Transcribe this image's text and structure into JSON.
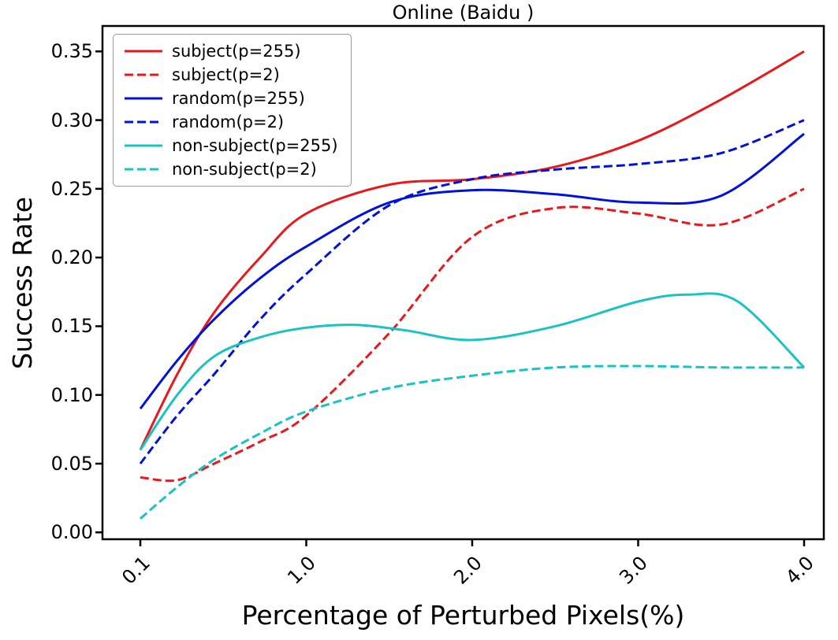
{
  "chart_data": {
    "type": "line",
    "title": "Online (Baidu )",
    "xlabel": "Percentage of Perturbed Pixels(%)",
    "ylabel": "Success Rate",
    "xtick_labels": [
      "0.1",
      "1.0",
      "2.0",
      "3.0",
      "4.0"
    ],
    "xticks": [
      0.1,
      1.0,
      2.0,
      3.0,
      4.0
    ],
    "ytick_labels": [
      "0.00",
      "0.05",
      "0.10",
      "0.15",
      "0.20",
      "0.25",
      "0.30",
      "0.35"
    ],
    "yticks": [
      0.0,
      0.05,
      0.1,
      0.15,
      0.2,
      0.25,
      0.3,
      0.35
    ],
    "ylim": [
      0.0,
      0.35
    ],
    "grid": false,
    "legend_position": "upper left",
    "colors": {
      "red": "#e8191c",
      "blue": "#0011dd",
      "cyan": "#1ac3c3"
    },
    "series": [
      {
        "name": "subject(p=255)",
        "color": "#e8191c",
        "style": "solid",
        "x": [
          0.1,
          0.3,
          0.5,
          0.75,
          1.0,
          1.5,
          2.0,
          2.5,
          3.0,
          3.5,
          4.0
        ],
        "y": [
          0.06,
          0.115,
          0.16,
          0.2,
          0.232,
          0.253,
          0.257,
          0.266,
          0.285,
          0.315,
          0.35
        ]
      },
      {
        "name": "subject(p=2)",
        "color": "#e8191c",
        "style": "dashed",
        "x": [
          0.1,
          0.3,
          0.5,
          0.75,
          1.0,
          1.5,
          2.0,
          2.5,
          3.0,
          3.5,
          4.0
        ],
        "y": [
          0.04,
          0.038,
          0.05,
          0.066,
          0.085,
          0.145,
          0.215,
          0.236,
          0.232,
          0.224,
          0.25
        ]
      },
      {
        "name": "random(p=255)",
        "color": "#0011dd",
        "style": "solid",
        "x": [
          0.1,
          0.3,
          0.5,
          0.75,
          1.0,
          1.5,
          2.0,
          2.5,
          3.0,
          3.5,
          4.0
        ],
        "y": [
          0.09,
          0.125,
          0.155,
          0.185,
          0.208,
          0.24,
          0.249,
          0.246,
          0.24,
          0.245,
          0.29
        ]
      },
      {
        "name": "random(p=2)",
        "color": "#0011dd",
        "style": "dashed",
        "x": [
          0.1,
          0.3,
          0.5,
          0.75,
          1.0,
          1.5,
          2.0,
          2.5,
          3.0,
          3.5,
          4.0
        ],
        "y": [
          0.05,
          0.085,
          0.115,
          0.155,
          0.188,
          0.238,
          0.257,
          0.264,
          0.268,
          0.276,
          0.3
        ]
      },
      {
        "name": "non-subject(p=255)",
        "color": "#1ac3c3",
        "style": "solid",
        "x": [
          0.1,
          0.3,
          0.5,
          0.75,
          1.0,
          1.3,
          1.6,
          2.0,
          2.5,
          3.0,
          3.3,
          3.6,
          4.0
        ],
        "y": [
          0.06,
          0.1,
          0.128,
          0.142,
          0.149,
          0.151,
          0.147,
          0.14,
          0.15,
          0.168,
          0.173,
          0.168,
          0.12
        ]
      },
      {
        "name": "non-subject(p=2)",
        "color": "#1ac3c3",
        "style": "dashed",
        "x": [
          0.1,
          0.3,
          0.5,
          0.75,
          1.0,
          1.5,
          2.0,
          2.5,
          3.0,
          3.5,
          4.0
        ],
        "y": [
          0.01,
          0.033,
          0.053,
          0.072,
          0.088,
          0.105,
          0.114,
          0.12,
          0.121,
          0.12,
          0.12
        ]
      }
    ]
  }
}
